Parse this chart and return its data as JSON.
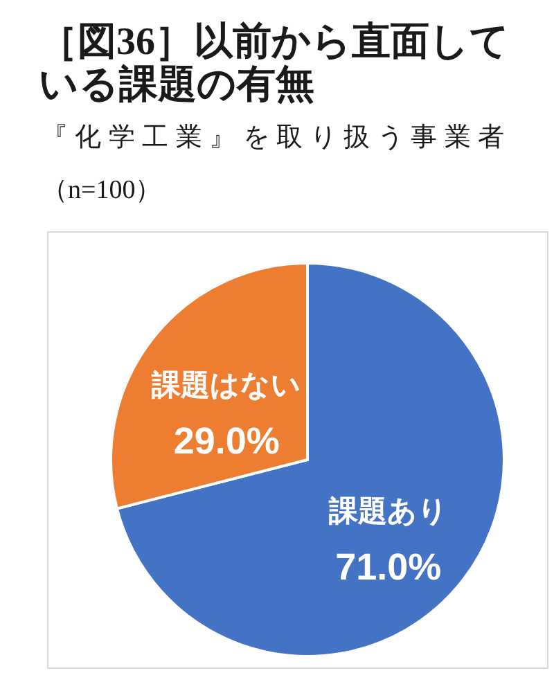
{
  "chart_data": {
    "type": "pie",
    "title": "［図36］以前から直面している課題の有無",
    "subtitle": "『化学工業』を取り扱う事業者（n=100）",
    "categories": [
      "課題あり",
      "課題はない"
    ],
    "values": [
      71.0,
      29.0
    ],
    "colors": [
      "#4472c4",
      "#ed7d31"
    ],
    "value_labels": [
      "71.0%",
      "29.0%"
    ]
  }
}
